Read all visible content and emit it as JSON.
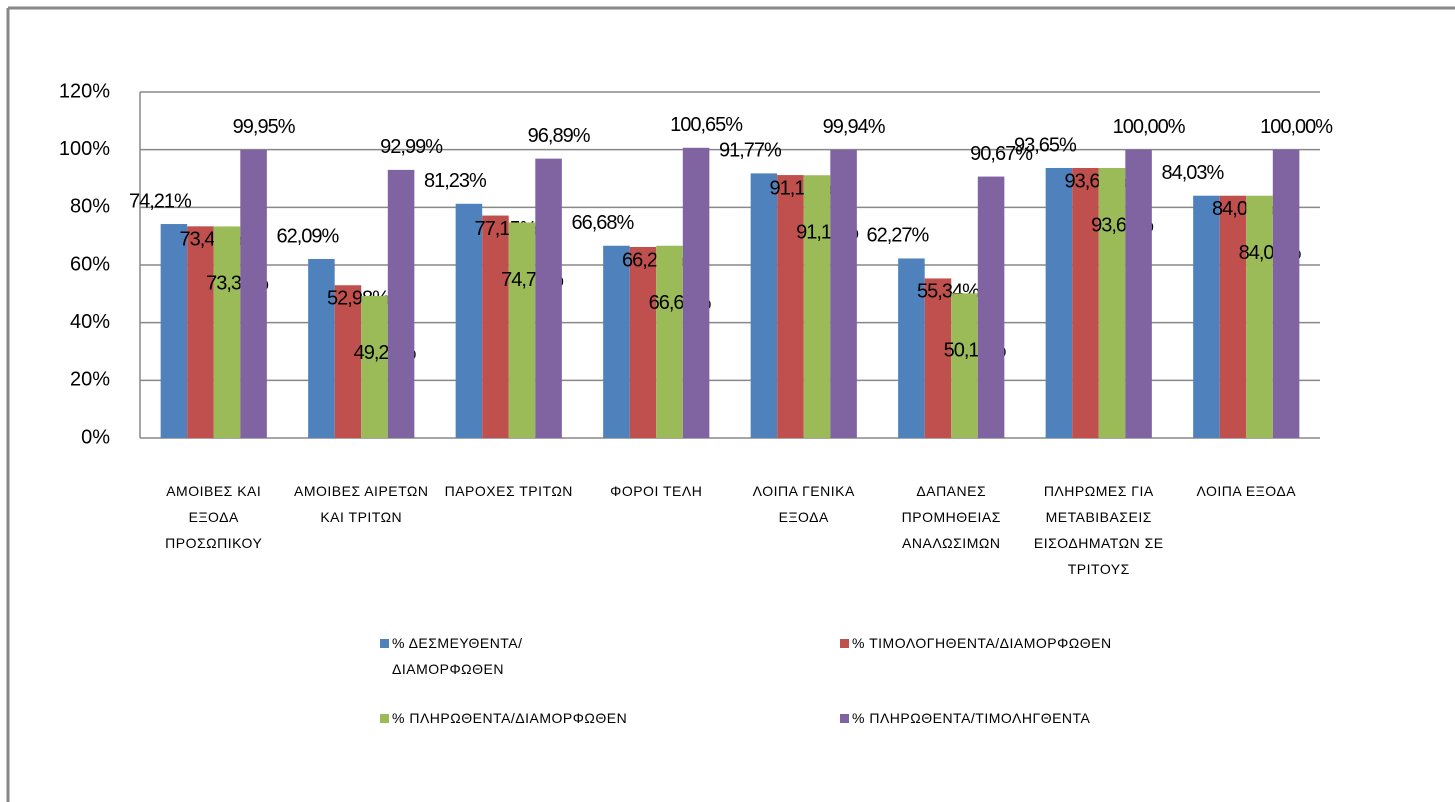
{
  "chart_data": {
    "type": "bar",
    "categories": [
      "ΑΜΟΙΒΕΣ ΚΑΙ ΕΞΟΔΑ ΠΡΟΣΩΠΙΚΟΥ",
      "ΑΜΟΙΒΕΣ ΑΙΡΕΤΩΝ ΚΑΙ ΤΡΙΤΩΝ",
      "ΠΑΡΟΧΕΣ ΤΡΙΤΩΝ",
      "ΦΟΡΟΙ ΤΕΛΗ",
      "ΛΟΙΠΑ ΓΕΝΙΚΑ ΕΞΟΔΑ",
      "ΔΑΠΑΝΕΣ ΠΡΟΜΗΘΕΙΑΣ ΑΝΑΛΩΣΙΜΩΝ",
      "ΠΛΗΡΩΜΕΣ ΓΙΑ ΜΕΤΑΒΙΒΑΣΕΙΣ ΕΙΣΟΔΗΜΑΤΩΝ ΣΕ ΤΡΙΤΟΥΣ",
      "ΛΟΙΠΑ ΕΞΟΔΑ"
    ],
    "series": [
      {
        "name": "% ΔΕΣΜΕΥΘΕΝΤΑ/ ΔΙΑΜΟΡΦΩΘΕΝ",
        "color": "#4f81bd",
        "values": [
          74.21,
          62.09,
          81.23,
          66.68,
          91.77,
          62.27,
          93.65,
          84.03
        ],
        "value_labels": [
          "74,21%",
          "62,09%",
          "81,23%",
          "66,68%",
          "91,77%",
          "62,27%",
          "93,65%",
          "84,03%"
        ]
      },
      {
        "name": "% ΤΙΜΟΛΟΓΗΘΕΝΤΑ/ΔΙΑΜΟΡΦΩΘΕΝ",
        "color": "#c0504d",
        "values": [
          73.41,
          52.98,
          77.15,
          66.25,
          91.19,
          55.34,
          93.65,
          84.03
        ],
        "value_labels": [
          "73,41%",
          "52,98%",
          "77,15%",
          "66,25%",
          "91,19%",
          "55,34%",
          "93,65%",
          "84,03%"
        ]
      },
      {
        "name": "% ΠΛΗΡΩΘΕΝΤΑ/ΔΙΑΜΟΡΦΩΘΕΝ",
        "color": "#9bbb59",
        "values": [
          73.38,
          49.27,
          74.75,
          66.68,
          91.13,
          50.17,
          93.65,
          84.03
        ],
        "value_labels": [
          "73,38%",
          "49,27%",
          "74,75%",
          "66,68%",
          "91,13%",
          "50,17%",
          "93,65%",
          "84,03%"
        ]
      },
      {
        "name": "% ΠΛΗΡΩΘΕΝΤΑ/ΤΙΜΟΛΗΓΘΕΝΤΑ",
        "color": "#8064a2",
        "values": [
          99.95,
          92.99,
          96.89,
          100.65,
          99.94,
          90.67,
          100.0,
          100.0
        ],
        "value_labels": [
          "99,95%",
          "92,99%",
          "96,89%",
          "100,65%",
          "99,94%",
          "90,67%",
          "100,00%",
          "100,00%"
        ]
      }
    ],
    "ylim": [
      0,
      120
    ],
    "yticks": [
      {
        "value": 0,
        "label": "0%"
      },
      {
        "value": 20,
        "label": "20%"
      },
      {
        "value": 40,
        "label": "40%"
      },
      {
        "value": 60,
        "label": "60%"
      },
      {
        "value": 80,
        "label": "80%"
      },
      {
        "value": 100,
        "label": "100%"
      },
      {
        "value": 120,
        "label": "120%"
      }
    ],
    "grid": true
  }
}
